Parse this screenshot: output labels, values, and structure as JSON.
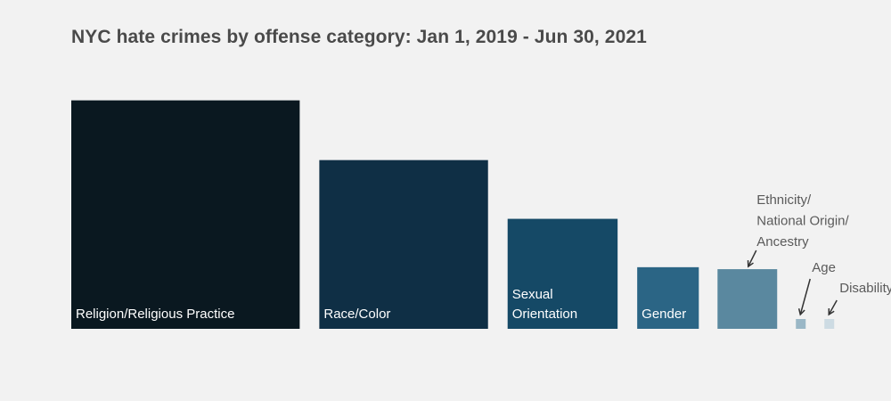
{
  "chart_data": {
    "type": "square-area",
    "title": "NYC hate crimes by offense category: Jan 1, 2019 - Jun 30, 2021",
    "unit_note": "",
    "categories": [
      {
        "label_lines": [
          "Religion/Religious Practice"
        ],
        "value": 1100,
        "color": "#0a1820",
        "label_pos": "inside"
      },
      {
        "label_lines": [
          "Race/Color"
        ],
        "value": 600,
        "color": "#0f2f45",
        "label_pos": "inside"
      },
      {
        "label_lines": [
          "Sexual",
          "Orientation"
        ],
        "value": 255,
        "color": "#154966",
        "label_pos": "inside"
      },
      {
        "label_lines": [
          "Gender"
        ],
        "value": 80,
        "color": "#2b6585",
        "label_pos": "inside"
      },
      {
        "label_lines": [
          "Ethnicity/",
          "National Origin/",
          "Ancestry"
        ],
        "value": 75,
        "color": "#5a889f",
        "label_pos": "above"
      },
      {
        "label_lines": [
          "Age"
        ],
        "value": 2,
        "color": "#9ab7c6",
        "label_pos": "above"
      },
      {
        "label_lines": [
          "Disability"
        ],
        "value": 2,
        "color": "#cddbe3",
        "label_pos": "above"
      }
    ]
  }
}
